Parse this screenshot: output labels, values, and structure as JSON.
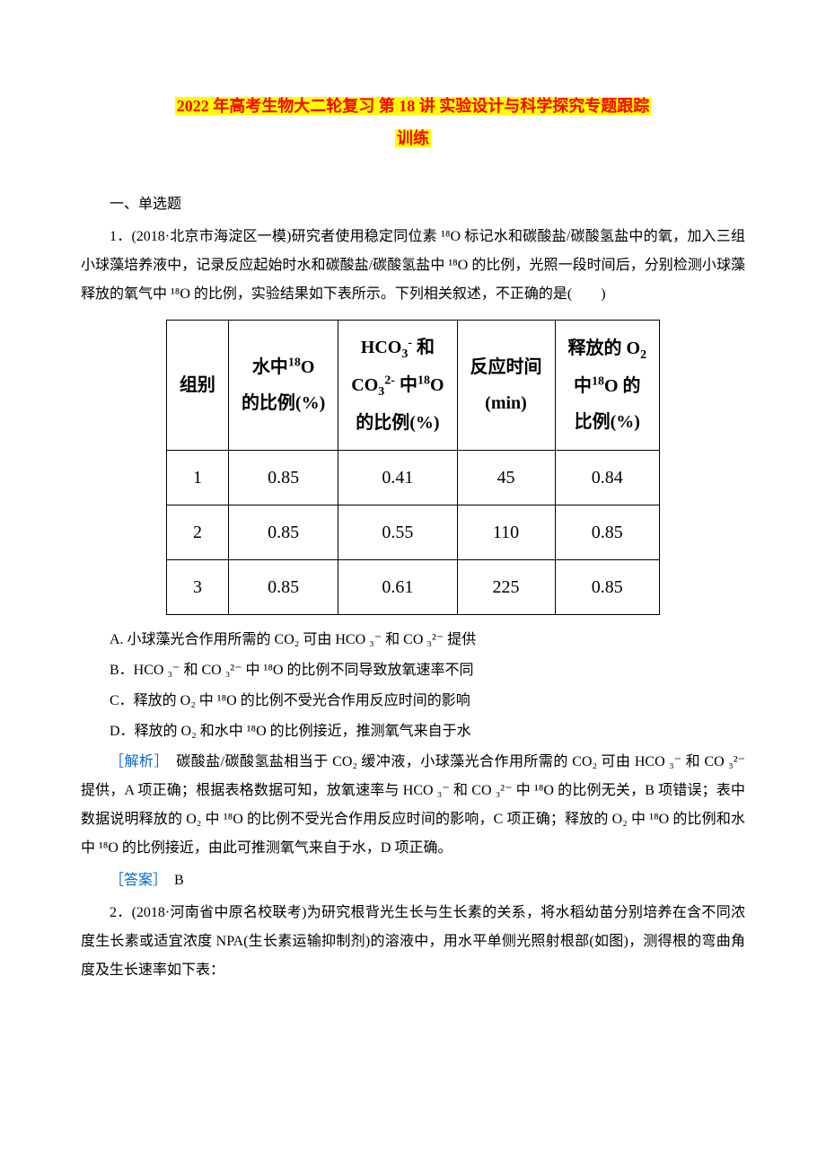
{
  "title": {
    "line1": "2022 年高考生物大二轮复习 第 18 讲 实验设计与科学探究专题跟踪",
    "line2": "训练"
  },
  "section1_heading": "一、单选题",
  "question1": {
    "stem": "1．(2018·北京市海淀区一模)研究者使用稳定同位素 ¹⁸O 标记水和碳酸盐/碳酸氢盐中的氧，加入三组小球藻培养液中，记录反应起始时水和碳酸盐/碳酸氢盐中 ¹⁸O 的比例，光照一段时间后，分别检测小球藻释放的氧气中 ¹⁸O 的比例，实验结果如下表所示。下列相关叙述，不正确的是(　　)",
    "table": {
      "headers": [
        "组别",
        "水中¹⁸O\n的比例(%)",
        "HCO₃⁻ 和\nCO₃²⁻ 中¹⁸O\n的比例(%)",
        "反应时间\n(min)",
        "释放的 O₂\n中¹⁸O 的\n比例(%)"
      ],
      "rows": [
        [
          "1",
          "0.85",
          "0.41",
          "45",
          "0.84"
        ],
        [
          "2",
          "0.85",
          "0.55",
          "110",
          "0.85"
        ],
        [
          "3",
          "0.85",
          "0.61",
          "225",
          "0.85"
        ]
      ],
      "col_widths": [
        "80px",
        "160px",
        "200px",
        "140px",
        "160px"
      ]
    },
    "options": {
      "A": "A. 小球藻光合作用所需的 CO₂ 可由 HCO ₃⁻ 和 CO ₃²⁻ 提供",
      "B": "B．HCO ₃⁻ 和 CO ₃²⁻ 中 ¹⁸O 的比例不同导致放氧速率不同",
      "C": "C．释放的 O₂ 中 ¹⁸O 的比例不受光合作用反应时间的影响",
      "D": "D．释放的 O₂ 和水中 ¹⁸O 的比例接近，推测氧气来自于水"
    },
    "analysis_label": "［解析］",
    "analysis_text": "　碳酸盐/碳酸氢盐相当于 CO₂ 缓冲液，小球藻光合作用所需的 CO₂ 可由 HCO ₃⁻ 和 CO ₃²⁻ 提供，A 项正确；根据表格数据可知，放氧速率与 HCO ₃⁻ 和 CO ₃²⁻ 中 ¹⁸O 的比例无关，B 项错误；表中数据说明释放的 O₂ 中 ¹⁸O 的比例不受光合作用反应时间的影响，C 项正确；释放的 O₂ 中 ¹⁸O 的比例和水中 ¹⁸O 的比例接近，由此可推测氧气来自于水，D 项正确。",
    "answer_label": "［答案］",
    "answer_text": "　B"
  },
  "question2": {
    "stem": "2．(2018·河南省中原名校联考)为研究根背光生长与生长素的关系，将水稻幼苗分别培养在含不同浓度生长素或适宜浓度 NPA(生长素运输抑制剂)的溶液中，用水平单侧光照射根部(如图)，测得根的弯曲角度及生长速率如下表："
  },
  "colors": {
    "highlight_bg": "#ffff00",
    "highlight_text": "#ff0000",
    "label_color": "#0066cc",
    "body_text": "#000000",
    "background": "#ffffff",
    "table_border": "#000000"
  }
}
